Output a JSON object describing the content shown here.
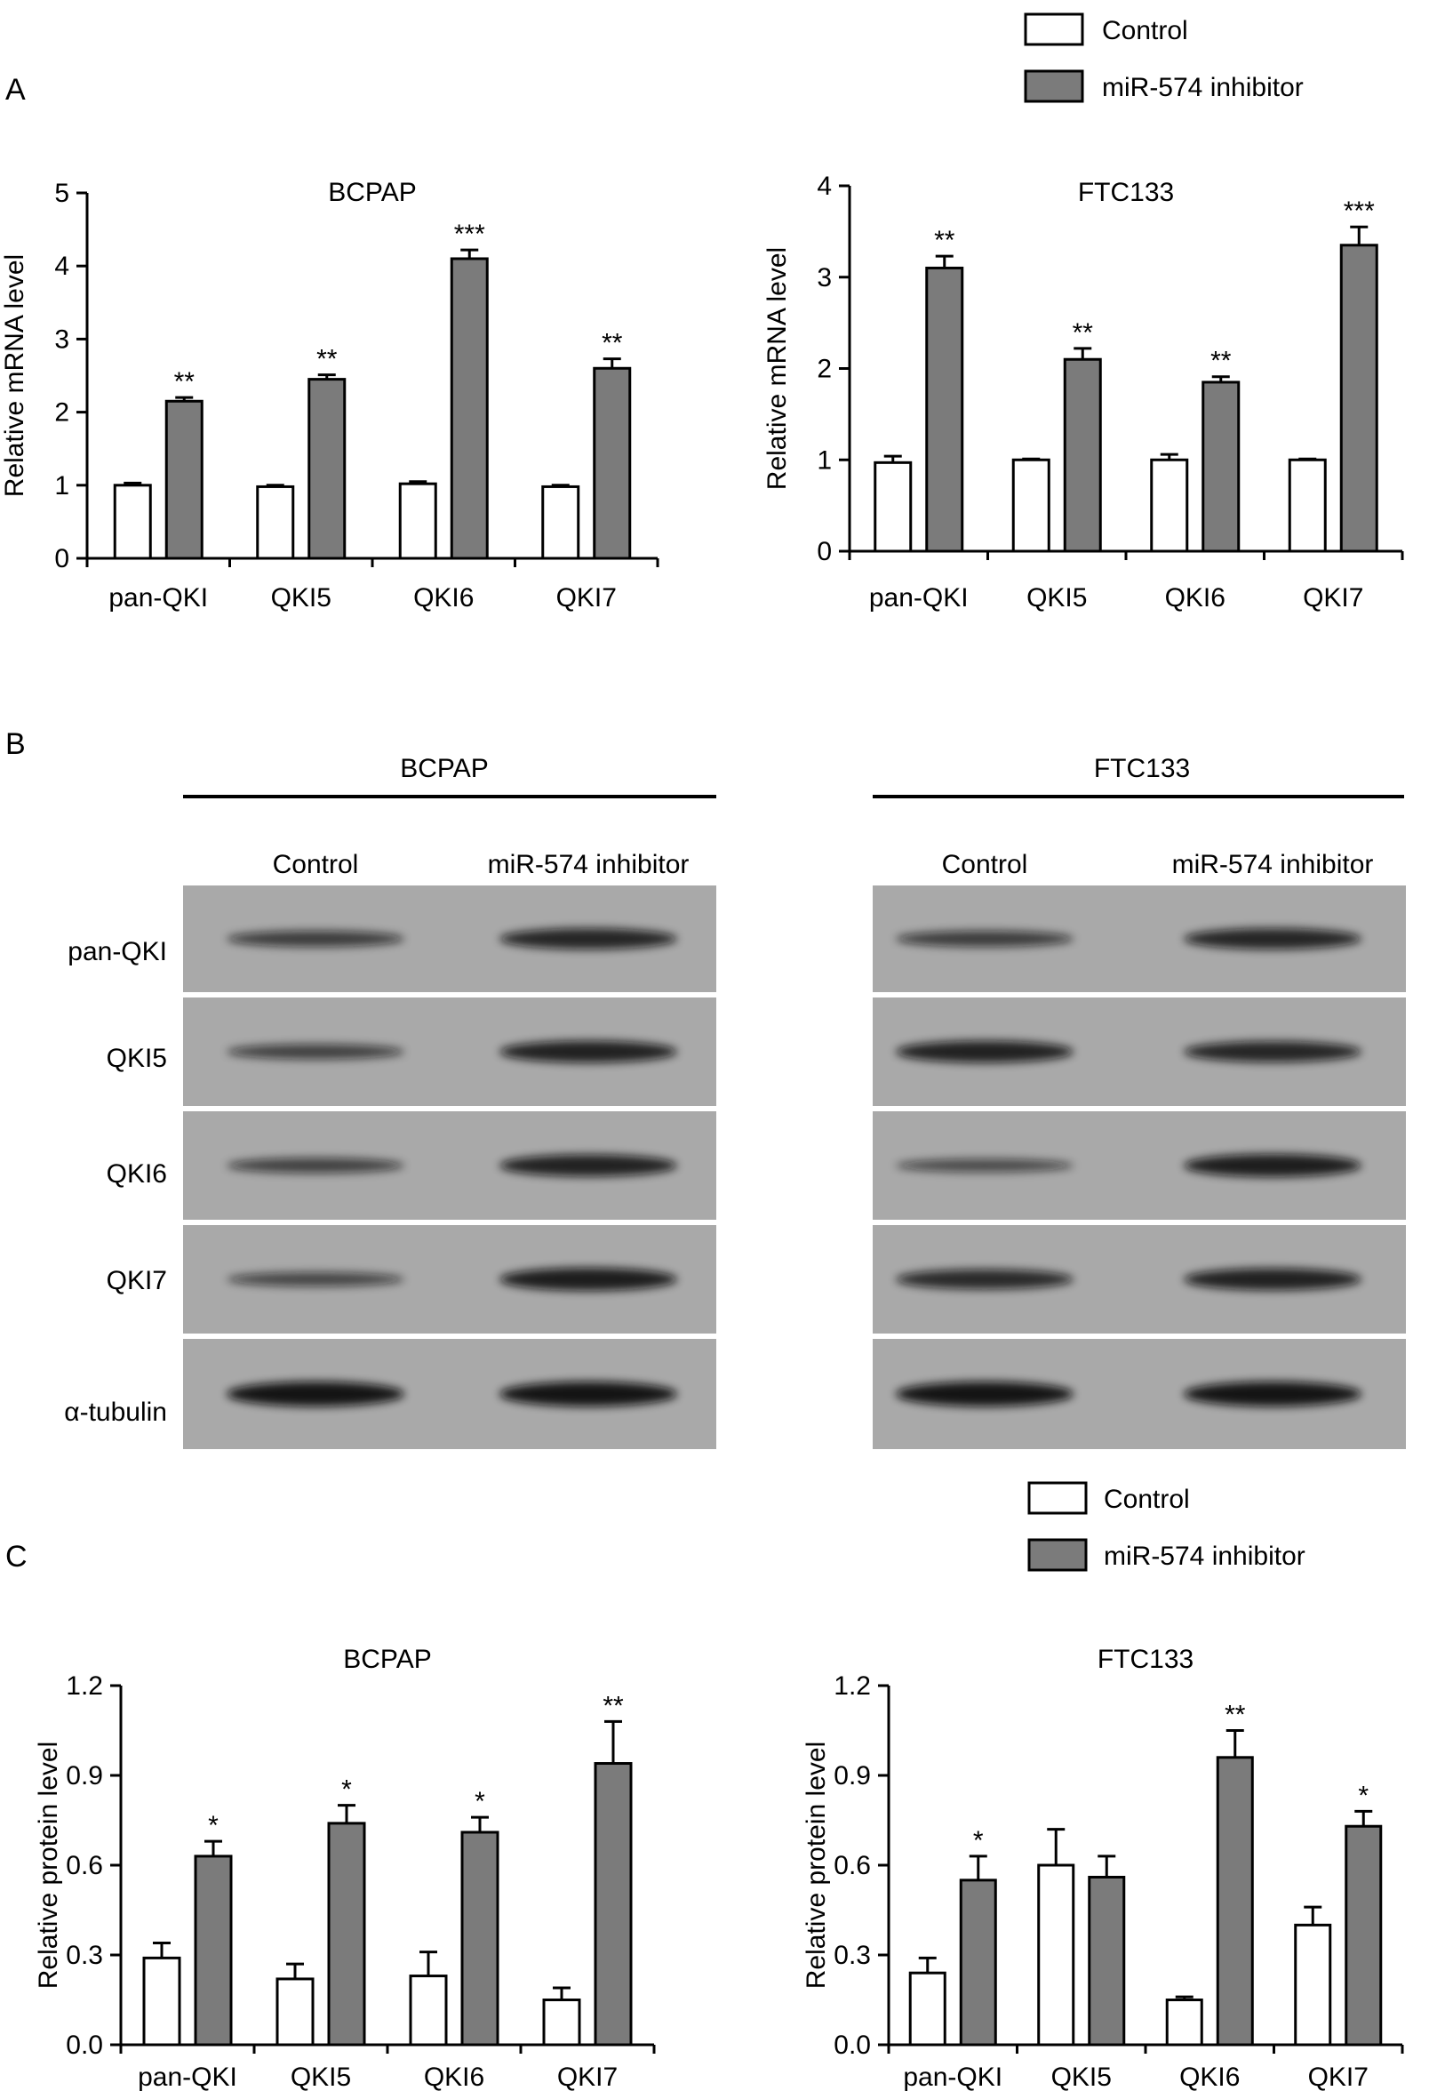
{
  "panel_letters": {
    "a": "A",
    "b": "B",
    "c": "C"
  },
  "legend": {
    "control": "Control",
    "inhibitor": "miR-574 inhibitor",
    "control_color": "#ffffff",
    "inhibitor_color": "#7b7b7b"
  },
  "western_blot": {
    "cells": [
      "BCPAP",
      "FTC133"
    ],
    "lanes": [
      "Control",
      "miR-574 inhibitor"
    ],
    "rows": [
      "pan-QKI",
      "QKI5",
      "QKI6",
      "QKI7",
      "α-tubulin"
    ],
    "band_intensity": [
      [
        [
          0.55,
          0.8
        ],
        [
          0.55,
          0.8
        ]
      ],
      [
        [
          0.5,
          0.85
        ],
        [
          0.85,
          0.8
        ]
      ],
      [
        [
          0.5,
          0.85
        ],
        [
          0.4,
          0.9
        ]
      ],
      [
        [
          0.45,
          0.9
        ],
        [
          0.75,
          0.85
        ]
      ],
      [
        [
          1.0,
          1.0
        ],
        [
          1.0,
          1.0
        ]
      ]
    ]
  },
  "chart_data": [
    {
      "type": "bar",
      "panel": "A",
      "title": "BCPAP",
      "ylabel": "Relative mRNA level",
      "categories": [
        "pan-QKI",
        "QKI5",
        "QKI6",
        "QKI7"
      ],
      "ylim": [
        0,
        5
      ],
      "yticks": [
        "0",
        "1",
        "2",
        "3",
        "4",
        "5"
      ],
      "series": [
        {
          "name": "Control",
          "values": [
            1.0,
            0.98,
            1.02,
            0.98
          ],
          "errors": [
            0.03,
            0.02,
            0.03,
            0.02
          ]
        },
        {
          "name": "miR-574 inhibitor",
          "values": [
            2.15,
            2.45,
            4.1,
            2.6
          ],
          "errors": [
            0.05,
            0.06,
            0.12,
            0.13
          ]
        }
      ],
      "significance": [
        "**",
        "**",
        "***",
        "**"
      ]
    },
    {
      "type": "bar",
      "panel": "A",
      "title": "FTC133",
      "ylabel": "Relative mRNA level",
      "categories": [
        "pan-QKI",
        "QKI5",
        "QKI6",
        "QKI7"
      ],
      "ylim": [
        0,
        4
      ],
      "yticks": [
        "0",
        "1",
        "2",
        "3",
        "4"
      ],
      "series": [
        {
          "name": "Control",
          "values": [
            0.97,
            1.0,
            1.0,
            1.0
          ],
          "errors": [
            0.07,
            0.01,
            0.06,
            0.01
          ]
        },
        {
          "name": "miR-574 inhibitor",
          "values": [
            3.1,
            2.1,
            1.85,
            3.35
          ],
          "errors": [
            0.13,
            0.12,
            0.06,
            0.2
          ]
        }
      ],
      "significance": [
        "**",
        "**",
        "**",
        "***"
      ]
    },
    {
      "type": "bar",
      "panel": "C",
      "title": "BCPAP",
      "ylabel": "Relative protein level",
      "categories": [
        "pan-QKI",
        "QKI5",
        "QKI6",
        "QKI7"
      ],
      "ylim": [
        0,
        1.2
      ],
      "yticks": [
        "0.0",
        "0.3",
        "0.6",
        "0.9",
        "1.2"
      ],
      "series": [
        {
          "name": "Control",
          "values": [
            0.29,
            0.22,
            0.23,
            0.15
          ],
          "errors": [
            0.05,
            0.05,
            0.08,
            0.04
          ]
        },
        {
          "name": "miR-574 inhibitor",
          "values": [
            0.63,
            0.74,
            0.71,
            0.94
          ],
          "errors": [
            0.05,
            0.06,
            0.05,
            0.14
          ]
        }
      ],
      "significance": [
        "*",
        "*",
        "*",
        "**"
      ]
    },
    {
      "type": "bar",
      "panel": "C",
      "title": "FTC133",
      "ylabel": "Relative protein level",
      "categories": [
        "pan-QKI",
        "QKI5",
        "QKI6",
        "QKI7"
      ],
      "ylim": [
        0,
        1.2
      ],
      "yticks": [
        "0.0",
        "0.3",
        "0.6",
        "0.9",
        "1.2"
      ],
      "series": [
        {
          "name": "Control",
          "values": [
            0.24,
            0.6,
            0.15,
            0.4
          ],
          "errors": [
            0.05,
            0.12,
            0.01,
            0.06
          ]
        },
        {
          "name": "miR-574 inhibitor",
          "values": [
            0.55,
            0.56,
            0.96,
            0.73
          ],
          "errors": [
            0.08,
            0.07,
            0.09,
            0.05
          ]
        }
      ],
      "significance": [
        "*",
        "",
        "**",
        "*"
      ]
    }
  ]
}
